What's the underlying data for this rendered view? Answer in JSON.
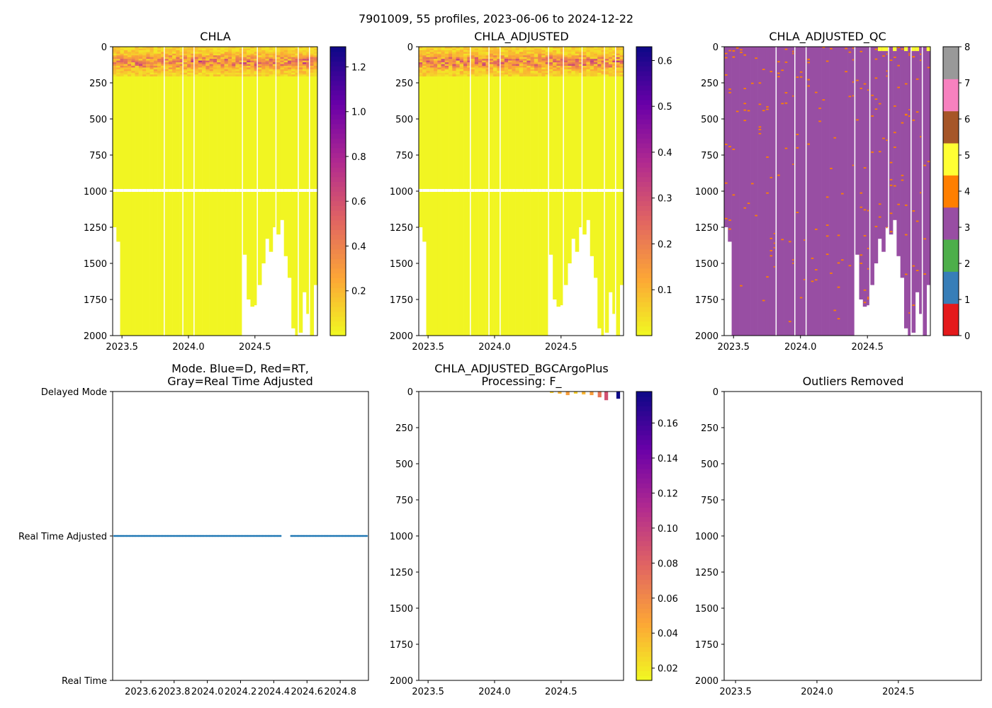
{
  "figure": {
    "suptitle": "7901009, 55 profiles, 2023-06-06 to 2024-12-22"
  },
  "colors": {
    "plasma": [
      "#0d0887",
      "#6a00a8",
      "#b12a90",
      "#e16462",
      "#fca636",
      "#f0f921"
    ],
    "qc": [
      "#e41a1c",
      "#377eb8",
      "#4daf4a",
      "#984ea3",
      "#ff7f00",
      "#ffff33",
      "#a65628",
      "#f781bf",
      "#999999"
    ],
    "mode_marker": "#1f77b4"
  },
  "chart_data": [
    {
      "id": "chla",
      "type": "heatmap",
      "title": "CHLA",
      "x_ticks": [
        "2023.5",
        "2024.0",
        "2024.5"
      ],
      "x_tick_values": [
        2023.5,
        2024.0,
        2024.5
      ],
      "xlim": [
        2023.43,
        2024.97
      ],
      "y_ticks": [
        "0",
        "250",
        "500",
        "750",
        "1000",
        "1250",
        "1500",
        "1750",
        "2000"
      ],
      "y_tick_values": [
        0,
        250,
        500,
        750,
        1000,
        1250,
        1500,
        1750,
        2000
      ],
      "ylim": [
        2000,
        0
      ],
      "colorbar_ticks": [
        "0.2",
        "0.4",
        "0.6",
        "0.8",
        "1.0",
        "1.2"
      ],
      "colorbar_tick_values": [
        0.2,
        0.4,
        0.6,
        0.8,
        1.0,
        1.2
      ],
      "clim": [
        0.0,
        1.29
      ]
    },
    {
      "id": "chla_adj",
      "type": "heatmap",
      "title": "CHLA_ADJUSTED",
      "x_ticks": [
        "2023.5",
        "2024.0",
        "2024.5"
      ],
      "x_tick_values": [
        2023.5,
        2024.0,
        2024.5
      ],
      "xlim": [
        2023.43,
        2024.97
      ],
      "y_ticks": [
        "0",
        "250",
        "500",
        "750",
        "1000",
        "1250",
        "1500",
        "1750",
        "2000"
      ],
      "y_tick_values": [
        0,
        250,
        500,
        750,
        1000,
        1250,
        1500,
        1750,
        2000
      ],
      "ylim": [
        2000,
        0
      ],
      "colorbar_ticks": [
        "0.1",
        "0.2",
        "0.3",
        "0.4",
        "0.5",
        "0.6"
      ],
      "colorbar_tick_values": [
        0.1,
        0.2,
        0.3,
        0.4,
        0.5,
        0.6
      ],
      "clim": [
        0.0,
        0.63
      ]
    },
    {
      "id": "qc",
      "type": "heatmap",
      "title": "CHLA_ADJUSTED_QC",
      "x_ticks": [
        "2023.5",
        "2024.0",
        "2024.5"
      ],
      "x_tick_values": [
        2023.5,
        2024.0,
        2024.5
      ],
      "xlim": [
        2023.43,
        2024.97
      ],
      "y_ticks": [
        "0",
        "250",
        "500",
        "750",
        "1000",
        "1250",
        "1500",
        "1750",
        "2000"
      ],
      "y_tick_values": [
        0,
        250,
        500,
        750,
        1000,
        1250,
        1500,
        1750,
        2000
      ],
      "ylim": [
        2000,
        0
      ],
      "colorbar_ticks": [
        "0",
        "1",
        "2",
        "3",
        "4",
        "5",
        "6",
        "7",
        "8"
      ],
      "colorbar_tick_values": [
        0,
        1,
        2,
        3,
        4,
        5,
        6,
        7,
        8
      ],
      "clim": [
        0,
        8
      ]
    },
    {
      "id": "mode",
      "type": "scatter",
      "title_lines": [
        "Mode. Blue=D, Red=RT,",
        "Gray=Real Time Adjusted"
      ],
      "x_ticks": [
        "2023.6",
        "2023.8",
        "2024.0",
        "2024.2",
        "2024.4",
        "2024.6",
        "2024.8"
      ],
      "x_tick_values": [
        2023.6,
        2023.8,
        2024.0,
        2024.2,
        2024.4,
        2024.6,
        2024.8
      ],
      "xlim": [
        2023.43,
        2024.97
      ],
      "y_ticks": [
        "Delayed Mode",
        "Real Time Adjusted",
        "Real Time"
      ],
      "y_tick_values": [
        2,
        1,
        0
      ],
      "ylim": [
        0,
        2
      ],
      "series": [
        {
          "name": "Real Time Adjusted",
          "y": 1,
          "x_start": 2023.44,
          "x_end": 2024.96,
          "gap": [
            2024.45,
            2024.5
          ]
        }
      ]
    },
    {
      "id": "bgc",
      "type": "heatmap",
      "title_lines": [
        "CHLA_ADJUSTED_BGCArgoPlus",
        "Processing: F_"
      ],
      "x_ticks": [
        "2023.5",
        "2024.0",
        "2024.5"
      ],
      "x_tick_values": [
        2023.5,
        2024.0,
        2024.5
      ],
      "xlim": [
        2023.43,
        2024.97
      ],
      "y_ticks": [
        "0",
        "250",
        "500",
        "750",
        "1000",
        "1250",
        "1500",
        "1750",
        "2000"
      ],
      "y_tick_values": [
        0,
        250,
        500,
        750,
        1000,
        1250,
        1500,
        1750,
        2000
      ],
      "ylim": [
        2000,
        0
      ],
      "colorbar_ticks": [
        "0.02",
        "0.04",
        "0.06",
        "0.08",
        "0.10",
        "0.12",
        "0.14",
        "0.16"
      ],
      "colorbar_tick_values": [
        0.02,
        0.04,
        0.06,
        0.08,
        0.1,
        0.12,
        0.14,
        0.16
      ],
      "clim": [
        0.013,
        0.178
      ],
      "profiles": [
        {
          "x": 2024.43,
          "depth": 10,
          "value": 0.03
        },
        {
          "x": 2024.49,
          "depth": 15,
          "value": 0.04
        },
        {
          "x": 2024.55,
          "depth": 25,
          "value": 0.05
        },
        {
          "x": 2024.61,
          "depth": 15,
          "value": 0.03
        },
        {
          "x": 2024.67,
          "depth": 20,
          "value": 0.04
        },
        {
          "x": 2024.73,
          "depth": 25,
          "value": 0.05
        },
        {
          "x": 2024.79,
          "depth": 40,
          "value": 0.07
        },
        {
          "x": 2024.84,
          "depth": 60,
          "value": 0.09
        },
        {
          "x": 2024.93,
          "depth": 50,
          "value": 0.178
        }
      ]
    },
    {
      "id": "outliers",
      "type": "scatter",
      "title": "Outliers Removed",
      "x_ticks": [
        "2023.5",
        "2024.0",
        "2024.5"
      ],
      "x_tick_values": [
        2023.5,
        2024.0,
        2024.5
      ],
      "xlim": [
        2023.43,
        2025.01
      ],
      "y_ticks": [
        "0",
        "250",
        "500",
        "750",
        "1000",
        "1250",
        "1500",
        "1750",
        "2000"
      ],
      "y_tick_values": [
        0,
        250,
        500,
        750,
        1000,
        1250,
        1500,
        1750,
        2000
      ],
      "ylim": [
        2000,
        0
      ],
      "points": []
    }
  ]
}
